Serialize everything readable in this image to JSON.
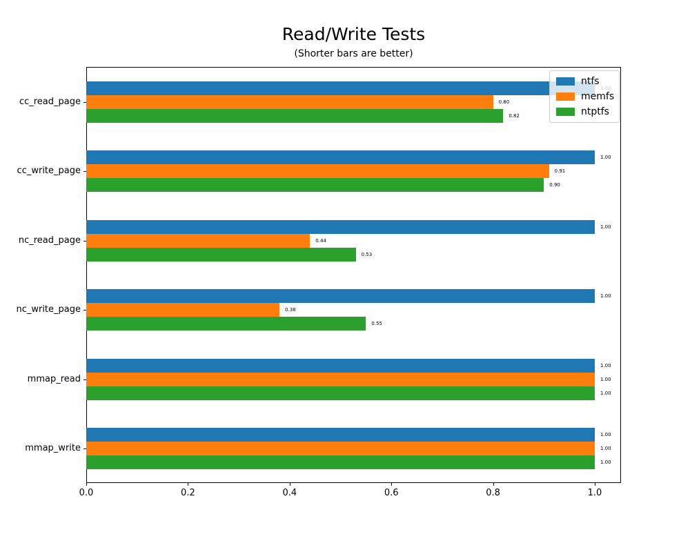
{
  "title": "Read/Write Tests",
  "subtitle": "(Shorter bars are better)",
  "chart_data": {
    "type": "bar",
    "orientation": "horizontal",
    "title": "Read/Write Tests",
    "subtitle": "(Shorter bars are better)",
    "xlabel": "",
    "ylabel": "",
    "grid": false,
    "xlim": [
      0.0,
      1.052
    ],
    "xticks": [
      "0.0",
      "0.2",
      "0.4",
      "0.6",
      "0.8",
      "1.0"
    ],
    "categories": [
      "cc_read_page",
      "cc_write_page",
      "nc_read_page",
      "nc_write_page",
      "mmap_read",
      "mmap_write"
    ],
    "series": [
      {
        "name": "ntfs",
        "color": "#1f77b4",
        "values": [
          1.0,
          1.0,
          1.0,
          1.0,
          1.0,
          1.0
        ]
      },
      {
        "name": "memfs",
        "color": "#ff7f0e",
        "values": [
          0.8,
          0.91,
          0.44,
          0.38,
          1.0,
          1.0
        ]
      },
      {
        "name": "ntptfs",
        "color": "#2ca02c",
        "values": [
          0.82,
          0.9,
          0.53,
          0.55,
          1.0,
          1.0
        ]
      }
    ],
    "bar_value_label_decimals": 2,
    "legend": {
      "position": "upper right",
      "entries": [
        "ntfs",
        "memfs",
        "ntptfs"
      ]
    }
  }
}
